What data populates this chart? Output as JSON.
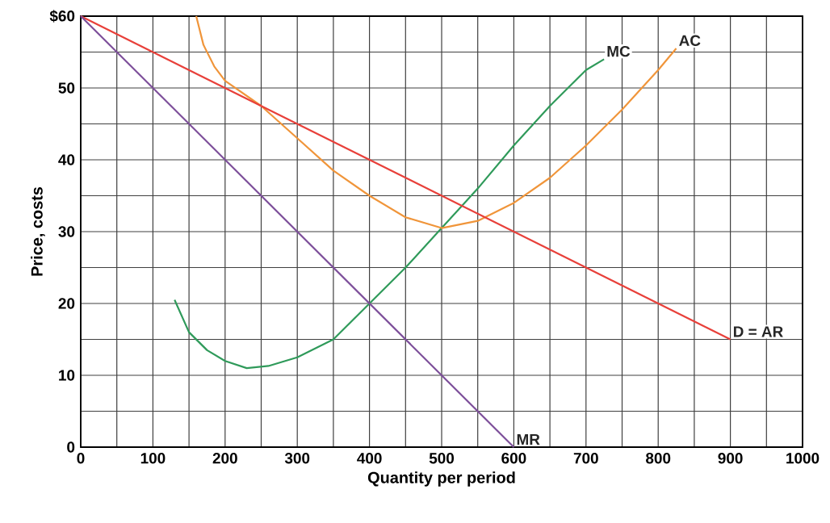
{
  "chart_data": {
    "type": "line",
    "xlabel": "Quantity per period",
    "ylabel": "Price, costs",
    "xlim": [
      0,
      1000
    ],
    "ylim": [
      0,
      60
    ],
    "xticks": [
      0,
      {
        "value": 50,
        "label": null
      },
      100,
      {
        "value": 150,
        "label": null
      },
      200,
      {
        "value": 250,
        "label": null
      },
      300,
      {
        "value": 350,
        "label": null
      },
      400,
      {
        "value": 450,
        "label": null
      },
      500,
      {
        "value": 550,
        "label": null
      },
      600,
      {
        "value": 650,
        "label": null
      },
      700,
      {
        "value": 750,
        "label": null
      },
      800,
      {
        "value": 850,
        "label": null
      },
      900,
      {
        "value": 950,
        "label": null
      },
      1000
    ],
    "yticks": [
      0,
      {
        "value": 5,
        "label": null
      },
      10,
      {
        "value": 15,
        "label": null
      },
      20,
      {
        "value": 25,
        "label": null
      },
      30,
      {
        "value": 35,
        "label": null
      },
      40,
      {
        "value": 45,
        "label": null
      },
      50,
      {
        "value": 55,
        "label": null
      },
      {
        "value": 60,
        "label": "$60"
      }
    ],
    "grid": true,
    "marker": "none",
    "line_style": "solid",
    "series": [
      {
        "name": "MC",
        "color": "#2f9a5a",
        "x": [
          130,
          150,
          175,
          200,
          230,
          260,
          300,
          350,
          400,
          450,
          500,
          550,
          600,
          650,
          700,
          725
        ],
        "values": [
          20.5,
          16,
          13.5,
          12,
          11,
          11.3,
          12.5,
          15,
          20,
          25,
          30.5,
          36,
          42,
          47.5,
          52.5,
          54
        ]
      },
      {
        "name": "AC",
        "color": "#f0953a",
        "x": [
          160,
          170,
          185,
          200,
          250,
          300,
          350,
          400,
          450,
          500,
          550,
          600,
          650,
          700,
          750,
          800,
          825
        ],
        "values": [
          60,
          56,
          53,
          51,
          47.5,
          43,
          38.5,
          35,
          32,
          30.5,
          31.5,
          34,
          37.5,
          42,
          47,
          52.5,
          55.5
        ]
      },
      {
        "name": "D = AR",
        "color": "#e8403a",
        "x": [
          0,
          900
        ],
        "values": [
          60,
          15
        ]
      },
      {
        "name": "MR",
        "color": "#7d4f9a",
        "x": [
          0,
          600
        ],
        "values": [
          60,
          0
        ]
      }
    ]
  }
}
